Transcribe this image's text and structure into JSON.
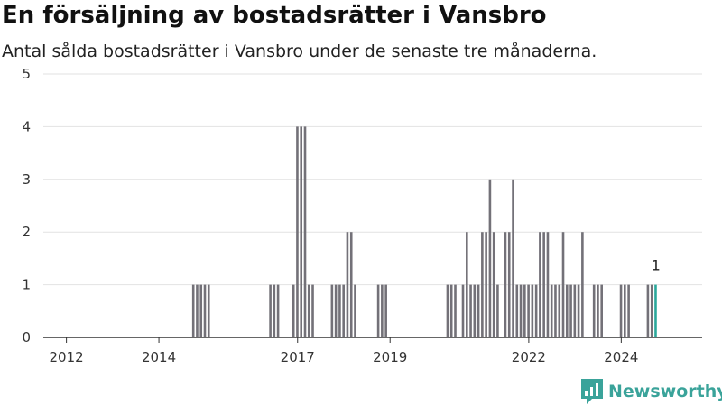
{
  "title": "En försäljning av bostadsrätter i Vansbro",
  "subtitle": "Antal sålda bostadsrätter i Vansbro under de senaste tre månaderna.",
  "brand": "Newsworthy",
  "colors": {
    "bar": "#737178",
    "highlight": "#2ba89b",
    "grid": "#e2e2e2",
    "axis": "#333333",
    "brand": "#3aa39a"
  },
  "chart_data": {
    "type": "bar",
    "title": "En försäljning av bostadsrätter i Vansbro",
    "subtitle": "Antal sålda bostadsrätter i Vansbro under de senaste tre månaderna.",
    "xlabel": "",
    "ylabel": "",
    "ylim": [
      0,
      5
    ],
    "xlim": [
      2011.5,
      2025.75
    ],
    "y_ticks": [
      0,
      1,
      2,
      3,
      4,
      5
    ],
    "x_ticks": [
      2012,
      2014,
      2017,
      2019,
      2022,
      2024
    ],
    "grid": true,
    "bar_width_years": 0.0625,
    "x": [
      2014.75,
      2014.833,
      2014.917,
      2015.0,
      2015.083,
      2016.417,
      2016.5,
      2016.583,
      2016.917,
      2017.0,
      2017.083,
      2017.167,
      2017.25,
      2017.333,
      2017.75,
      2017.833,
      2017.917,
      2018.0,
      2018.083,
      2018.167,
      2018.25,
      2018.75,
      2018.833,
      2018.917,
      2020.25,
      2020.333,
      2020.417,
      2020.583,
      2020.667,
      2020.75,
      2020.833,
      2020.917,
      2021.0,
      2021.083,
      2021.167,
      2021.25,
      2021.333,
      2021.5,
      2021.583,
      2021.667,
      2021.75,
      2021.833,
      2021.917,
      2022.0,
      2022.083,
      2022.167,
      2022.25,
      2022.333,
      2022.417,
      2022.5,
      2022.583,
      2022.667,
      2022.75,
      2022.833,
      2022.917,
      2023.0,
      2023.083,
      2023.167,
      2023.417,
      2023.5,
      2023.583,
      2024.0,
      2024.083,
      2024.167,
      2024.583,
      2024.667,
      2024.75
    ],
    "values": [
      1,
      1,
      1,
      1,
      1,
      1,
      1,
      1,
      1,
      4,
      4,
      4,
      1,
      1,
      1,
      1,
      1,
      1,
      2,
      2,
      1,
      1,
      1,
      1,
      1,
      1,
      1,
      1,
      2,
      1,
      1,
      1,
      2,
      2,
      3,
      2,
      1,
      2,
      2,
      3,
      1,
      1,
      1,
      1,
      1,
      1,
      2,
      2,
      2,
      1,
      1,
      1,
      2,
      1,
      1,
      1,
      1,
      2,
      1,
      1,
      1,
      1,
      1,
      1,
      1,
      1,
      1
    ],
    "highlight_last": true,
    "annotation": "1"
  }
}
